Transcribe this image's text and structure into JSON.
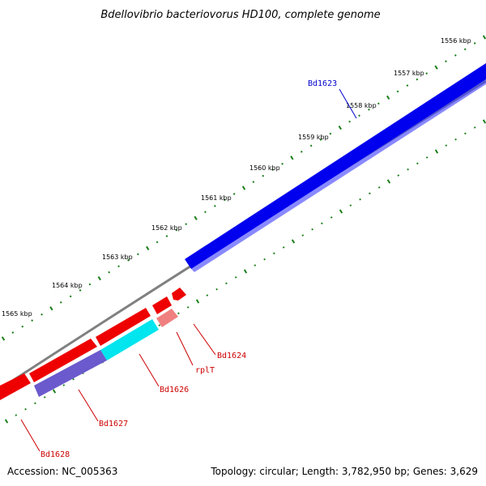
{
  "title": "Bdellovibrio bacteriovorus HD100, complete genome",
  "ticks": [
    "1556 kbp",
    "1557 kbp",
    "1558 kbp",
    "1559 kbp",
    "1560 kbp",
    "1561 kbp",
    "1562 kbp",
    "1563 kbp",
    "1564 kbp",
    "1565 kbp"
  ],
  "genes": [
    {
      "name": "Bd1623",
      "color": "#0000cc",
      "strand": "forward"
    },
    {
      "name": "Bd1624",
      "color": "#cc0000",
      "strand": "reverse"
    },
    {
      "name": "rplT",
      "color": "#cc0000",
      "strand": "reverse"
    },
    {
      "name": "Bd1626",
      "color": "#cc0000",
      "strand": "reverse"
    },
    {
      "name": "Bd1627",
      "color": "#cc0000",
      "strand": "reverse"
    },
    {
      "name": "Bd1628",
      "color": "#cc0000",
      "strand": "reverse"
    }
  ],
  "colors": {
    "forward_cds": "#0000ee",
    "reverse_cds": "#ee0000",
    "backbone": "#808080",
    "tick": "#1a7f1a",
    "cyan_feature": "#00e5ee",
    "purple_feature": "#6a5acd",
    "pink_feature": "#f08080"
  },
  "footer": {
    "accession": "Accession: NC_005363",
    "summary": "Topology: circular; Length: 3,782,950 bp; Genes: 3,629"
  }
}
